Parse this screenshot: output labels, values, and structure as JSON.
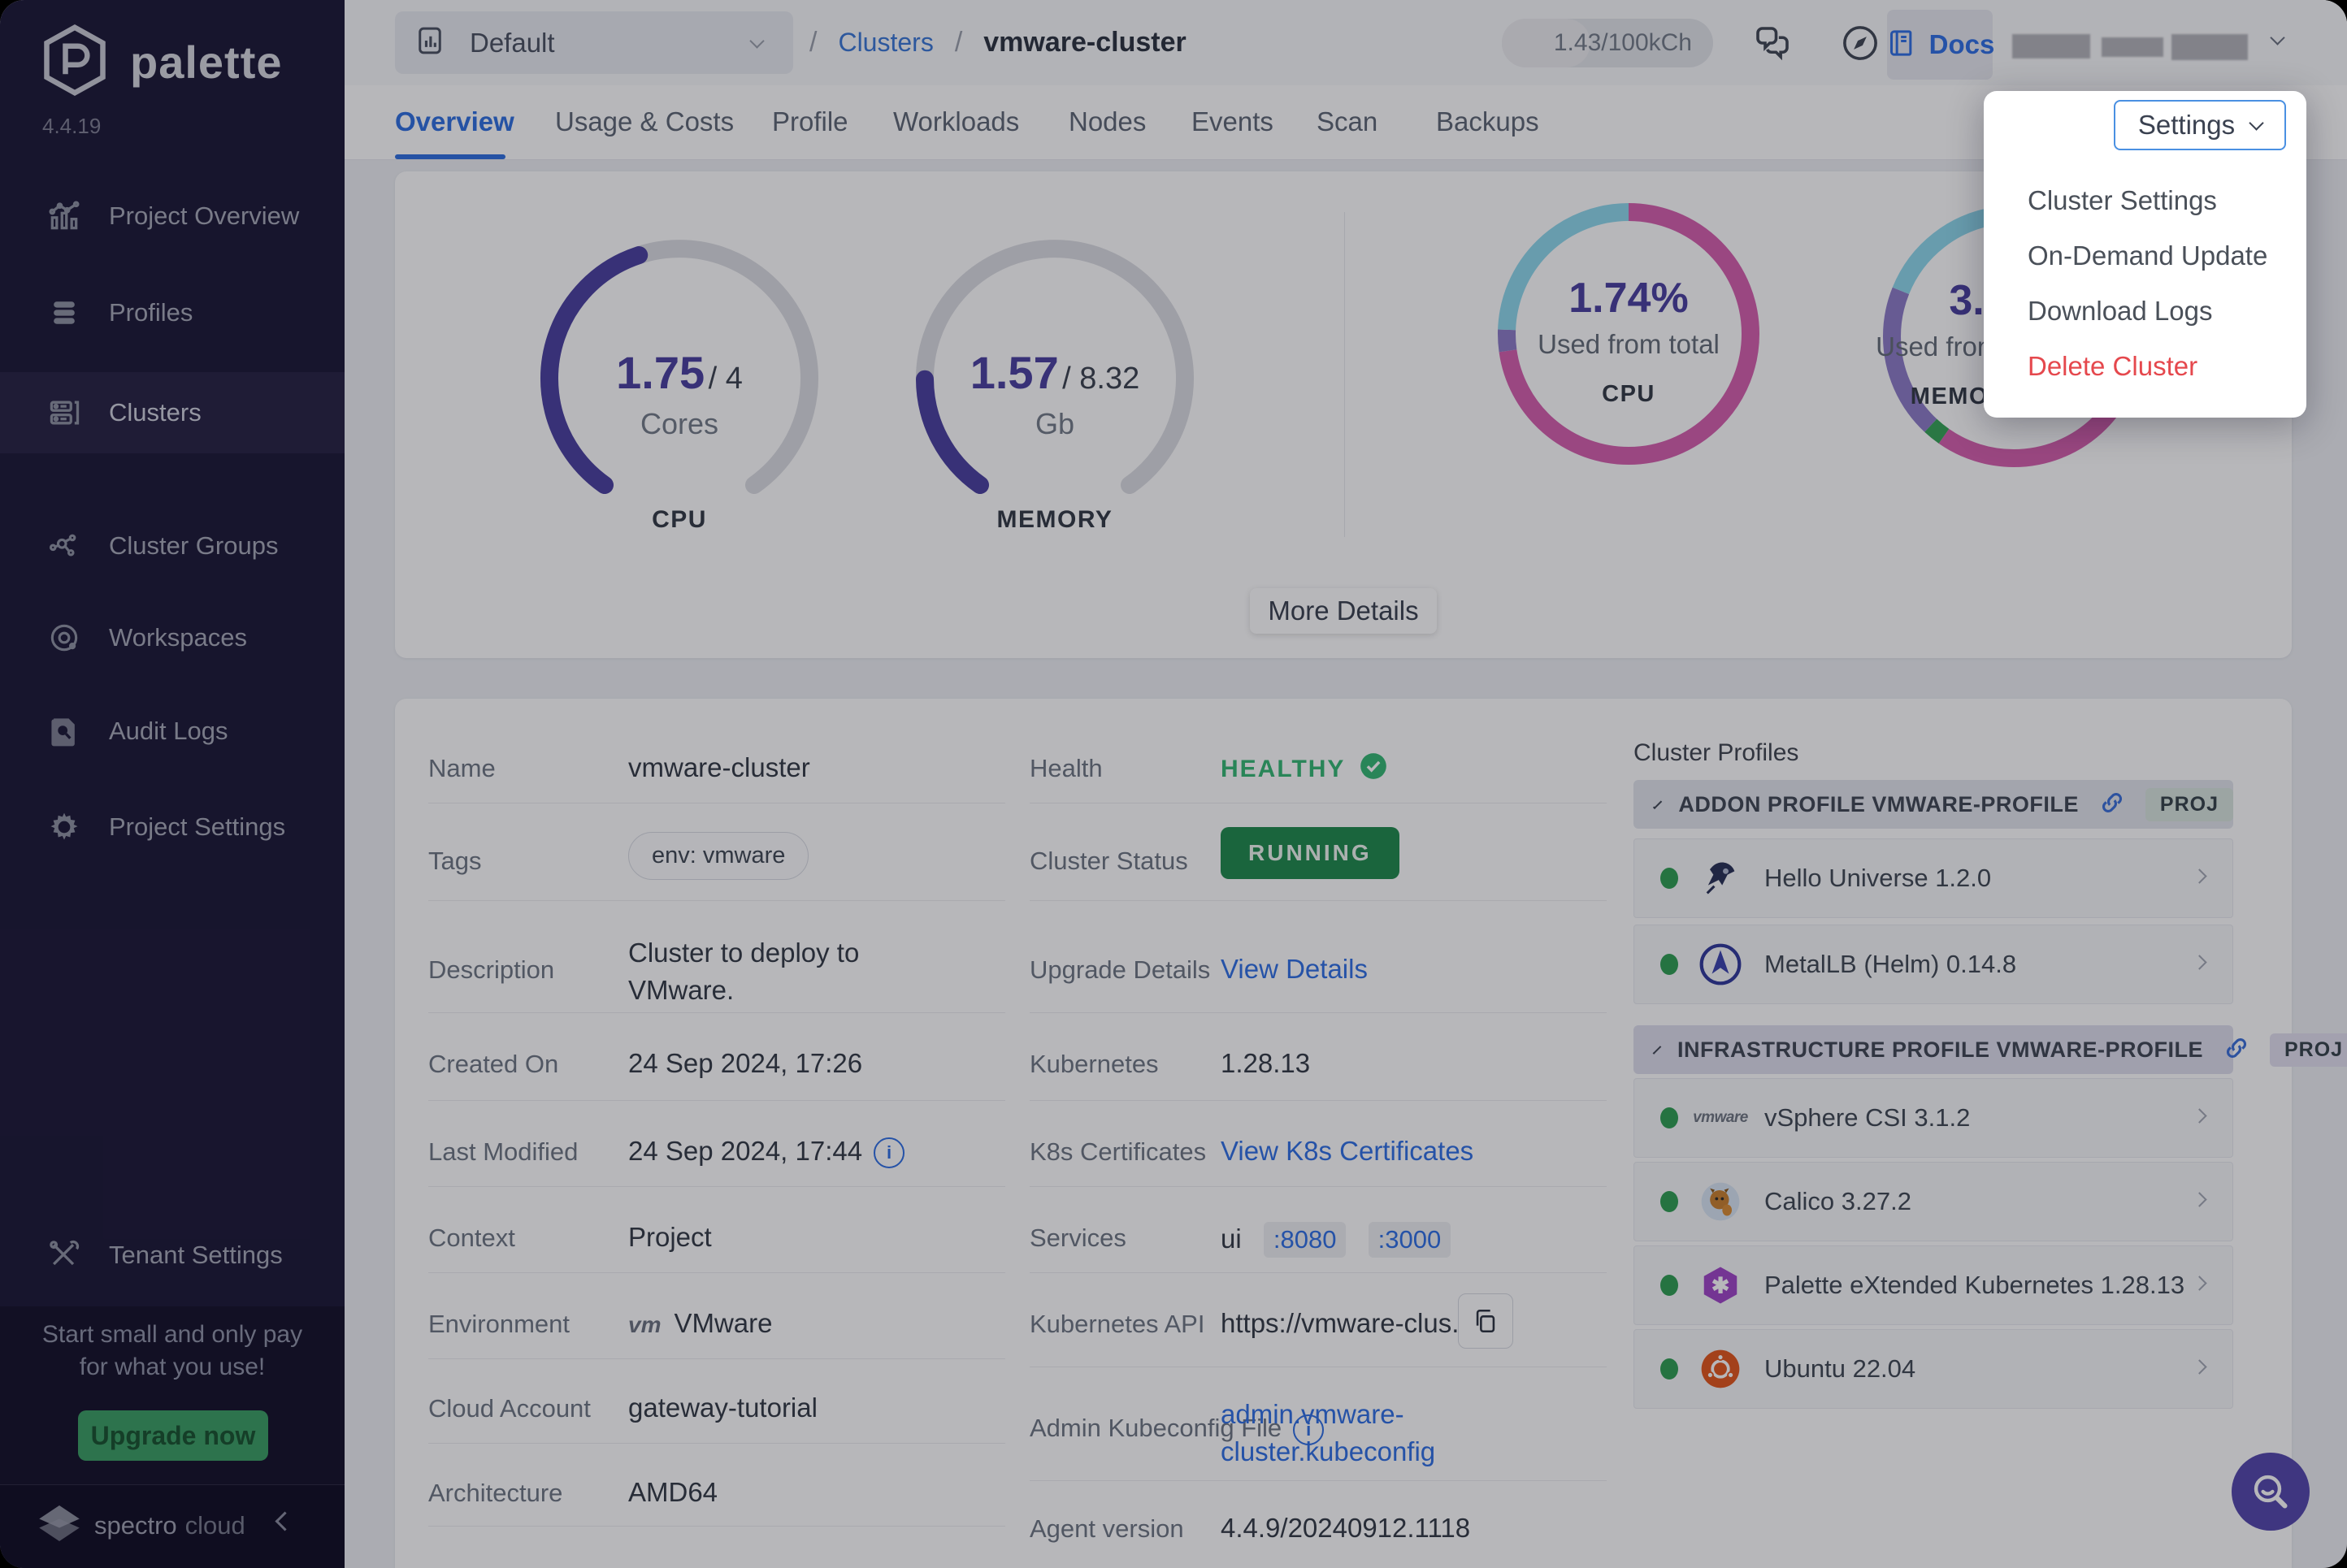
{
  "colors": {
    "magenta": "#d65fae",
    "magenta2": "#d65fae",
    "cyan": "#8fd8ec",
    "purple": "#8d7cc8",
    "green": "#35a457",
    "indigo": "#4a3f9f",
    "accent_blue": "#2f6fe4",
    "healthy_green": "#34b873",
    "running_green": "#1f8a4c",
    "danger_red": "#e5484d",
    "upgrade_green": "#3a9e63"
  },
  "sidebar": {
    "brand": "palette",
    "version": "4.4.19",
    "items": [
      {
        "label": "Project Overview"
      },
      {
        "label": "Profiles"
      },
      {
        "label": "Clusters"
      },
      {
        "label": "Cluster Groups"
      },
      {
        "label": "Workspaces"
      },
      {
        "label": "Audit Logs"
      },
      {
        "label": "Project Settings"
      }
    ],
    "tenant": {
      "label": "Tenant Settings"
    },
    "promo": {
      "line1": "Start small and only pay",
      "line2": "for what you use!",
      "cta": "Upgrade now"
    },
    "footer": {
      "brand_primary": "spectro",
      "brand_secondary": "cloud"
    }
  },
  "header": {
    "project_selector": {
      "label": "Default"
    },
    "breadcrumb": {
      "separator": "/",
      "parent": "Clusters",
      "current": "vmware-cluster"
    },
    "usage_badge": "1.43/100kCh",
    "docs_label": "Docs"
  },
  "tabs": [
    {
      "label": "Overview"
    },
    {
      "label": "Usage & Costs"
    },
    {
      "label": "Profile"
    },
    {
      "label": "Workloads"
    },
    {
      "label": "Nodes"
    },
    {
      "label": "Events"
    },
    {
      "label": "Scan"
    },
    {
      "label": "Backups"
    }
  ],
  "summary": {
    "cpu_gauge": {
      "value": "1.75",
      "separator": "/",
      "capacity": "4",
      "unit": "Cores",
      "label": "CPU",
      "used": 1.75,
      "cap": 4
    },
    "memory_gauge": {
      "value": "1.57",
      "separator": "/",
      "capacity": "8.32",
      "unit": "Gb",
      "label": "MEMORY",
      "used": 1.57,
      "cap": 8.32
    },
    "cpu_donut": {
      "value": "1.74%",
      "caption": "Used from total",
      "label": "CPU",
      "segments": [
        {
          "color": "magenta",
          "deg": 262
        },
        {
          "color": "purple",
          "deg": 10
        },
        {
          "color": "cyan",
          "deg": 88
        }
      ]
    },
    "memory_donut": {
      "value": "3.",
      "caption": "Used from total",
      "label": "MEMORY",
      "segments": [
        {
          "color": "magenta",
          "deg": 215
        },
        {
          "color": "green",
          "deg": 8
        },
        {
          "color": "purple",
          "deg": 69
        },
        {
          "color": "cyan",
          "deg": 60
        },
        {
          "color": "magenta2",
          "deg": 8
        }
      ]
    },
    "more_details": "More Details"
  },
  "details": {
    "left": [
      {
        "label": "Name",
        "value": "vmware-cluster"
      },
      {
        "label": "Tags",
        "tag": "env: vmware"
      },
      {
        "label": "Description",
        "value": "Cluster to deploy to VMware."
      },
      {
        "label": "Created On",
        "value": "24 Sep 2024, 17:26"
      },
      {
        "label": "Last Modified",
        "value": "24 Sep 2024, 17:44"
      },
      {
        "label": "Context",
        "value": "Project"
      },
      {
        "label": "Environment",
        "value": "VMware",
        "brand": "vm"
      },
      {
        "label": "Cloud Account",
        "value": "gateway-tutorial"
      },
      {
        "label": "Architecture",
        "value": "AMD64"
      }
    ],
    "middle": [
      {
        "label": "Health",
        "value": "HEALTHY"
      },
      {
        "label": "Cluster Status",
        "value": "RUNNING"
      },
      {
        "label": "Upgrade Details",
        "link": "View Details"
      },
      {
        "label": "Kubernetes",
        "value": "1.28.13"
      },
      {
        "label": "K8s Certificates",
        "link": "View K8s Certificates"
      },
      {
        "label": "Services",
        "value": "ui",
        "ports": [
          {
            "label": ":8080"
          },
          {
            "label": ":3000"
          }
        ]
      },
      {
        "label": "Kubernetes API",
        "value": "https://vmware-clus..."
      },
      {
        "label": "Admin Kubeconfig File",
        "link_line1": "admin.vmware-",
        "link_line2": "cluster.kubeconfig"
      },
      {
        "label": "Agent version",
        "value": "4.4.9/20240912.1118"
      }
    ]
  },
  "profiles": {
    "title": "Cluster Profiles",
    "groups": [
      {
        "name": "ADDON PROFILE VMWARE-PROFILE",
        "badge": "PROJ",
        "items": [
          {
            "name": "Hello Universe 1.2.0"
          },
          {
            "name": "MetalLB (Helm) 0.14.8"
          }
        ]
      },
      {
        "name": "INFRASTRUCTURE PROFILE VMWARE-PROFILE",
        "badge": "PROJ",
        "items": [
          {
            "name": "vSphere CSI 3.1.2"
          },
          {
            "name": "Calico 3.27.2"
          },
          {
            "name": "Palette eXtended Kubernetes 1.28.13"
          },
          {
            "name": "Ubuntu 22.04"
          }
        ]
      }
    ]
  },
  "settings_menu": {
    "button": "Settings",
    "items": [
      {
        "label": "Cluster Settings"
      },
      {
        "label": "On-Demand Update"
      },
      {
        "label": "Download Logs"
      },
      {
        "label": "Delete Cluster"
      }
    ]
  }
}
